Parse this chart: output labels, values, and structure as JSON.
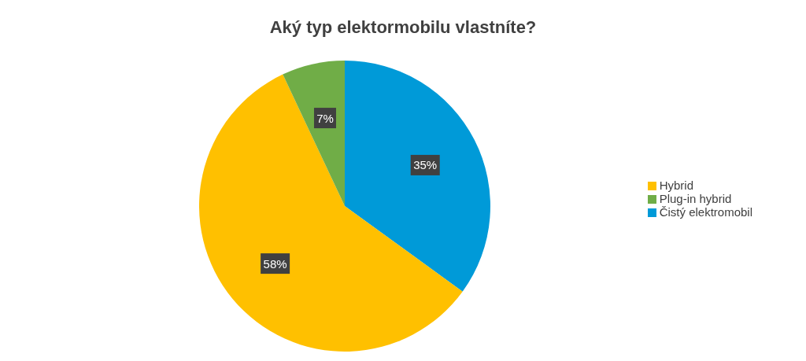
{
  "chart_data": {
    "type": "pie",
    "title": "Aký typ elektormobilu vlastníte?",
    "categories": [
      "Čistý elektromobil",
      "Hybrid",
      "Plug-in hybrid"
    ],
    "values": [
      35,
      58,
      7
    ],
    "colors": [
      "#009ad8",
      "#ffc000",
      "#70ad47"
    ],
    "value_labels": [
      "35%",
      "58%",
      "7%"
    ],
    "legend": "right"
  }
}
